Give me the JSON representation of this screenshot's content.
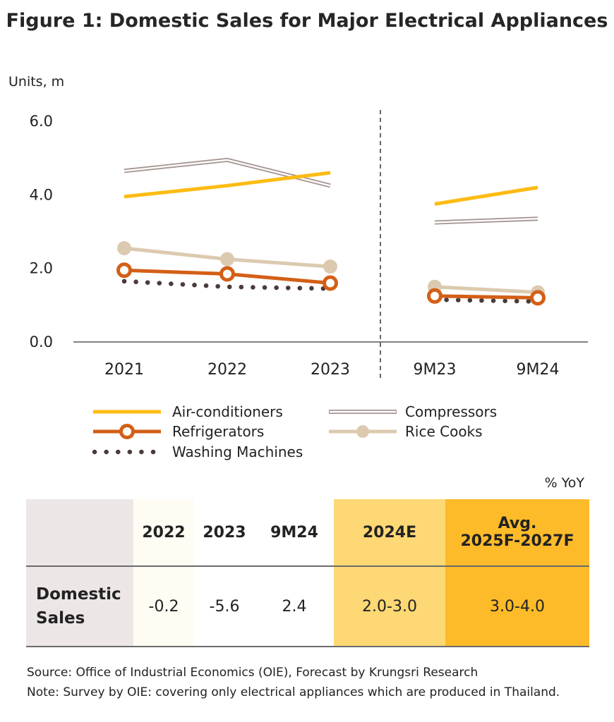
{
  "title": "Figure 1: Domestic Sales for Major Electrical Appliances",
  "colors": {
    "air_conditioners": "#fdbb13",
    "compressors": "#a59592",
    "refrigerators": "#d35f16",
    "rice_cooks": "#dccab0",
    "washing_machines": "#4a3b3a"
  },
  "chart_data": {
    "type": "line",
    "ylabel": "Units, m",
    "ylim": [
      0,
      6
    ],
    "yticks": [
      "0.0",
      "2.0",
      "4.0",
      "6.0"
    ],
    "groups": [
      {
        "categories": [
          "2021",
          "2022",
          "2023"
        ]
      },
      {
        "categories": [
          "9M23",
          "9M24"
        ]
      }
    ],
    "series": [
      {
        "name": "Air-conditioners",
        "key": "air_conditioners",
        "style": "solid",
        "values": [
          3.95,
          4.25,
          4.6,
          3.75,
          4.2
        ]
      },
      {
        "name": "Compressors",
        "key": "compressors",
        "style": "double",
        "values": [
          4.65,
          4.95,
          4.25,
          3.25,
          3.35
        ]
      },
      {
        "name": "Refrigerators",
        "key": "refrigerators",
        "style": "ring-marker",
        "values": [
          1.95,
          1.85,
          1.6,
          1.25,
          1.2
        ]
      },
      {
        "name": "Rice Cooks",
        "key": "rice_cooks",
        "style": "dot-marker",
        "values": [
          2.55,
          2.25,
          2.05,
          1.5,
          1.35
        ]
      },
      {
        "name": "Washing Machines",
        "key": "washing_machines",
        "style": "dotted",
        "values": [
          1.65,
          1.5,
          1.45,
          1.15,
          1.1
        ]
      }
    ]
  },
  "table": {
    "unit": "% YoY",
    "headers": [
      "",
      "2022",
      "2023",
      "9M24",
      "2024E",
      "Avg. 2025F-2027F"
    ],
    "header_last_lines": [
      "Avg.",
      "2025F-2027F"
    ],
    "row_label_lines": [
      "Domestic",
      "Sales"
    ],
    "values": [
      "-0.2",
      "-5.6",
      "2.4",
      "2.0-3.0",
      "3.0-4.0"
    ]
  },
  "notes": [
    "Source: Office of Industrial Economics (OIE), Forecast by Krungsri Research",
    "Note: Survey by OIE: covering only electrical appliances which are produced in Thailand."
  ]
}
